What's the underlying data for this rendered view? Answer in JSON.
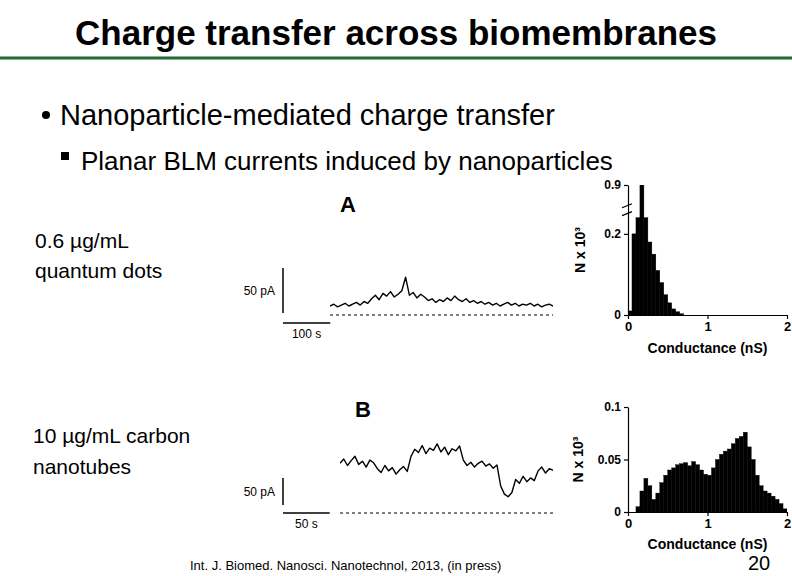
{
  "slide": {
    "title": "Charge transfer across biomembranes",
    "bullet": "Nanoparticle-mediated charge transfer",
    "sub_bullet": "Planar BLM currents induced by nanoparticles",
    "citation": "Int. J. Biomed. Nanosci. Nanotechnol, 2013, (in press)",
    "page": "20"
  },
  "chart_data": [
    {
      "type": "line",
      "title": "A",
      "annotation": [
        "0.6 µg/mL",
        "quantum dots"
      ],
      "tick_labels": false,
      "color": "#000000",
      "line_style": "solid",
      "baseline": 0,
      "scale_bars": {
        "x": {
          "value": 100,
          "label": "100 s"
        },
        "y": {
          "value": 50,
          "label": "50 pA"
        }
      },
      "x": [
        0,
        8,
        16,
        24,
        32,
        40,
        48,
        56,
        64,
        72,
        80,
        88,
        96,
        104,
        112,
        120,
        128,
        136,
        144,
        152,
        160,
        168,
        176,
        184,
        192,
        200,
        208,
        216,
        224,
        232,
        240,
        248,
        256,
        264,
        272,
        280,
        288,
        296,
        304,
        312,
        320,
        328,
        336,
        344,
        352,
        360,
        368,
        376,
        384,
        392,
        400,
        408,
        416,
        424,
        432,
        440,
        448,
        456,
        464,
        472
      ],
      "values": [
        10,
        12,
        9,
        11,
        13,
        10,
        12,
        14,
        11,
        15,
        13,
        18,
        22,
        17,
        24,
        21,
        26,
        20,
        23,
        27,
        42,
        22,
        25,
        19,
        23,
        20,
        16,
        18,
        14,
        17,
        15,
        19,
        16,
        21,
        17,
        15,
        18,
        14,
        16,
        13,
        15,
        12,
        14,
        11,
        13,
        10,
        12,
        14,
        11,
        13,
        10,
        12,
        11,
        13,
        10,
        12,
        9,
        11,
        12,
        10
      ]
    },
    {
      "type": "histogram",
      "xlabel": "Conductance (nS)",
      "ylabel": "N x 10³",
      "color": "#000000",
      "xlim": [
        0,
        2
      ],
      "xticks": [
        0,
        1,
        2
      ],
      "ylim": [
        0,
        0.9
      ],
      "yticks": [
        0,
        0.2,
        0.9
      ],
      "y_break": [
        0.25,
        0.85
      ],
      "bins": [
        0,
        0.05,
        0.1,
        0.15,
        0.2,
        0.25,
        0.3,
        0.35,
        0.4,
        0.45,
        0.5,
        0.55,
        0.6,
        0.65,
        0.7,
        0.75,
        0.8,
        0.85,
        0.9,
        0.95,
        1,
        1.05,
        1.1,
        1.15,
        1.2,
        1.25,
        1.3,
        1.35,
        1.4,
        1.45,
        1.5,
        1.55,
        1.6,
        1.65,
        1.7,
        1.75,
        1.8,
        1.85,
        1.9,
        1.95,
        2
      ],
      "values": [
        0.01,
        0.2,
        0.24,
        0.9,
        0.24,
        0.18,
        0.15,
        0.11,
        0.08,
        0.05,
        0.03,
        0.015,
        0.008,
        0.003,
        0,
        0,
        0,
        0,
        0,
        0,
        0,
        0,
        0,
        0,
        0,
        0,
        0,
        0,
        0,
        0,
        0,
        0,
        0,
        0,
        0,
        0,
        0,
        0,
        0,
        0
      ]
    },
    {
      "type": "line",
      "title": "B",
      "annotation": [
        "10 µg/mL carbon",
        "nanotubes"
      ],
      "tick_labels": false,
      "color": "#000000",
      "line_style": "solid",
      "baseline": 0,
      "scale_bars": {
        "x": {
          "value": 50,
          "label": "50 s"
        },
        "y": {
          "value": 50,
          "label": "50 pA"
        }
      },
      "x": [
        0,
        4,
        8,
        12,
        16,
        20,
        24,
        28,
        32,
        36,
        40,
        44,
        48,
        52,
        56,
        60,
        64,
        68,
        72,
        76,
        80,
        84,
        88,
        92,
        96,
        100,
        104,
        108,
        112,
        116,
        120,
        124,
        128,
        132,
        136,
        140,
        144,
        148,
        152,
        156,
        160,
        164,
        168,
        172,
        176,
        180,
        184,
        188,
        192,
        196,
        200,
        204,
        208,
        212,
        216,
        220,
        224,
        228
      ],
      "values": [
        92,
        100,
        88,
        97,
        105,
        90,
        96,
        85,
        98,
        93,
        82,
        75,
        88,
        78,
        84,
        72,
        80,
        86,
        77,
        105,
        118,
        112,
        125,
        110,
        120,
        116,
        128,
        113,
        122,
        108,
        119,
        115,
        124,
        98,
        88,
        94,
        85,
        92,
        96,
        87,
        91,
        83,
        89,
        50,
        35,
        30,
        38,
        62,
        55,
        68,
        58,
        65,
        60,
        78,
        85,
        74,
        82,
        79
      ]
    },
    {
      "type": "histogram",
      "xlabel": "Conductance (nS)",
      "ylabel": "N x 10³",
      "color": "#000000",
      "xlim": [
        0,
        2
      ],
      "xticks": [
        0,
        1,
        2
      ],
      "ylim": [
        0,
        0.1
      ],
      "yticks": [
        0,
        0.05,
        0.1
      ],
      "bins": [
        0,
        0.05,
        0.1,
        0.15,
        0.2,
        0.25,
        0.3,
        0.35,
        0.4,
        0.45,
        0.5,
        0.55,
        0.6,
        0.65,
        0.7,
        0.75,
        0.8,
        0.85,
        0.9,
        0.95,
        1,
        1.05,
        1.1,
        1.15,
        1.2,
        1.25,
        1.3,
        1.35,
        1.4,
        1.45,
        1.5,
        1.55,
        1.6,
        1.65,
        1.7,
        1.75,
        1.8,
        1.85,
        1.9,
        1.95,
        2
      ],
      "values": [
        0,
        0,
        0.005,
        0.02,
        0.032,
        0.025,
        0.012,
        0.018,
        0.028,
        0.035,
        0.04,
        0.042,
        0.045,
        0.046,
        0.047,
        0.044,
        0.048,
        0.045,
        0.04,
        0.036,
        0.035,
        0.042,
        0.05,
        0.055,
        0.058,
        0.06,
        0.065,
        0.07,
        0.072,
        0.076,
        0.062,
        0.05,
        0.035,
        0.025,
        0.02,
        0.018,
        0.015,
        0.012,
        0.008,
        0.003
      ]
    }
  ]
}
